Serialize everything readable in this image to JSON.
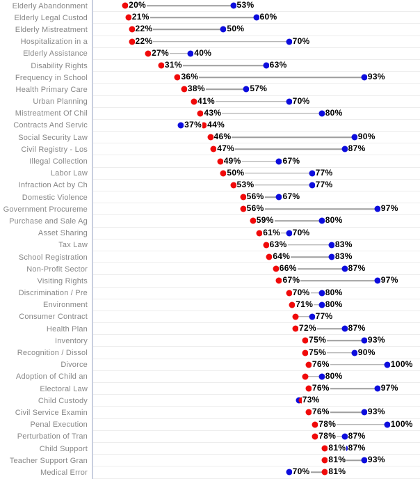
{
  "chart_data": {
    "type": "scatter",
    "variant": "dumbbell",
    "orientation": "horizontal",
    "title": "",
    "xlabel": "",
    "ylabel": "",
    "xlim": [
      10,
      110
    ],
    "x_axis_visible": false,
    "grid": true,
    "legend": false,
    "value_label_suffix": "%",
    "categories": [
      "Elderly Abandonment",
      "Elderly Legal Custod",
      "Elderly Mistreatment",
      "Hospitalization in a",
      "Elderly Assistance",
      "Disability Rights",
      "Frequency in School",
      "Health Primary Care",
      "Urban Planning",
      "Mistreatment Of Chil",
      "Contracts And Servic",
      "Social Security Law",
      "Civil Registry - Los",
      "Illegal Collection",
      "Labor Law",
      "Infraction Act by Ch",
      "Domestic Violence",
      "Government Procureme",
      "Purchase and Sale Ag",
      "Asset Sharing",
      "Tax Law",
      "School Registration",
      "Non-Profit Sector",
      "Visiting Rights",
      "Discrimination / Pre",
      "Environment",
      "Consumer Contract",
      "Health Plan",
      "Inventory",
      "Recognition / Dissol",
      "Divorce",
      "Adoption of Child an",
      "Electoral Law",
      "Child Custody",
      "Civil Service Examin",
      "Penal Execution",
      "Perturbation of Tran",
      "Child Support",
      "Teacher Support Gran",
      "Medical Error"
    ],
    "series": [
      {
        "name": "red",
        "color": "#f00a0a",
        "values": [
          20,
          21,
          22,
          22,
          27,
          31,
          36,
          38,
          41,
          43,
          44,
          46,
          47,
          49,
          50,
          53,
          56,
          56,
          59,
          61,
          63,
          64,
          66,
          67,
          70,
          71,
          72,
          72,
          75,
          75,
          76,
          75,
          76,
          74,
          76,
          78,
          78,
          81,
          81,
          81
        ]
      },
      {
        "name": "blue",
        "color": "#0d0ddd",
        "values": [
          53,
          60,
          50,
          70,
          40,
          63,
          93,
          57,
          70,
          80,
          37,
          90,
          87,
          67,
          77,
          77,
          67,
          97,
          80,
          70,
          83,
          83,
          87,
          97,
          80,
          80,
          77,
          87,
          93,
          90,
          100,
          80,
          97,
          73,
          93,
          100,
          87,
          87,
          93,
          70
        ]
      }
    ],
    "hidden_value_labels": [
      {
        "category_index": 26,
        "category": "Consumer Contract",
        "series": "red"
      },
      {
        "category_index": 31,
        "category": "Adoption of Child an",
        "series": "red"
      },
      {
        "category_index": 33,
        "category": "Child Custody",
        "series": "red"
      }
    ],
    "styles": {
      "background": "#ffffff",
      "grid_color": "#ededed",
      "axis_line_color": "#c9cfdf",
      "connector_color": "#9e9e9e",
      "category_label_color": "#878787",
      "value_label_color": "#000000"
    }
  }
}
